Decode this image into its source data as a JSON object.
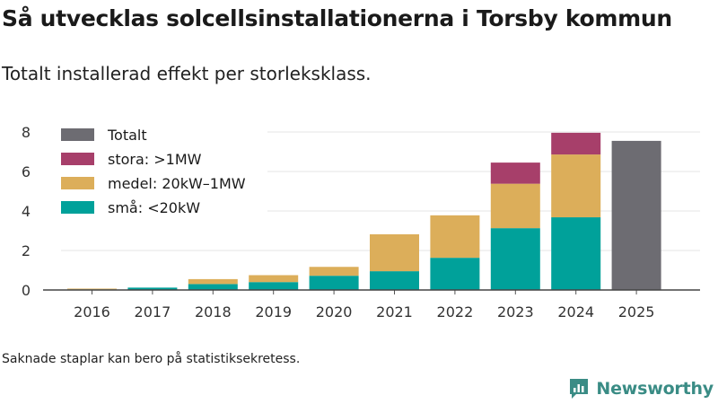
{
  "header": {
    "title": "Så utvecklas solcellsinstallationerna i Torsby kommun",
    "subtitle": "Totalt installerad effekt per storleksklass."
  },
  "footnote": "Saknade staplar kan bero på statistiksekretess.",
  "brand": {
    "name": "Newsworthy",
    "color": "#3a8c85"
  },
  "chart_data": {
    "type": "bar",
    "stacked": true,
    "categories": [
      "2016",
      "2017",
      "2018",
      "2019",
      "2020",
      "2021",
      "2022",
      "2023",
      "2024",
      "2025"
    ],
    "series": [
      {
        "name": "små: <20kW",
        "color": "#00a19a",
        "values": [
          0.03,
          0.12,
          0.3,
          0.4,
          0.72,
          0.95,
          1.63,
          3.13,
          3.68,
          null
        ]
      },
      {
        "name": "medel: 20kW–1MW",
        "color": "#dcae5a",
        "values": [
          0.04,
          0.0,
          0.25,
          0.35,
          0.45,
          1.87,
          2.15,
          2.25,
          3.18,
          null
        ]
      },
      {
        "name": "stora: >1MW",
        "color": "#a73f6a",
        "values": [
          0,
          0,
          0,
          0,
          0,
          0,
          0,
          1.07,
          1.1,
          null
        ]
      },
      {
        "name": "Totalt",
        "color": "#6d6c72",
        "values": [
          null,
          null,
          null,
          null,
          null,
          null,
          null,
          null,
          null,
          7.55
        ]
      }
    ],
    "legend": [
      "Totalt",
      "stora: >1MW",
      "medel: 20kW–1MW",
      "små: <20kW"
    ],
    "legend_position": "top-left",
    "yticks": [
      "0",
      "2",
      "4",
      "6",
      "8"
    ],
    "ylim": [
      0,
      8.6
    ],
    "xlabel": "",
    "ylabel": "",
    "grid": true
  }
}
